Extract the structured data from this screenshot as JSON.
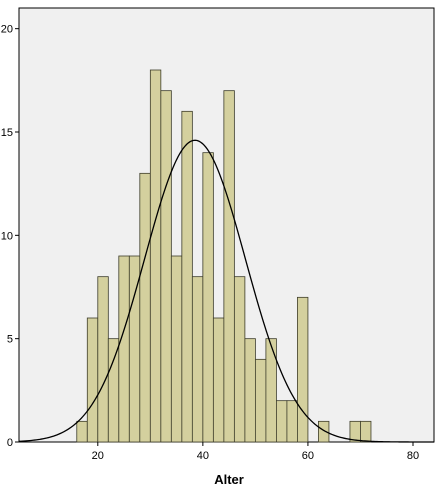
{
  "chart_data": {
    "type": "bar",
    "subtype": "histogram",
    "title": "",
    "xlabel": "Alter",
    "ylabel": "",
    "xlim": [
      5,
      84
    ],
    "ylim": [
      0,
      21
    ],
    "xticks": [
      20,
      40,
      60,
      80
    ],
    "yticks": [
      0,
      5,
      10,
      15,
      20
    ],
    "bin_width": 2,
    "bins": [
      {
        "x": 17,
        "value": 1
      },
      {
        "x": 19,
        "value": 6
      },
      {
        "x": 21,
        "value": 8
      },
      {
        "x": 23,
        "value": 5
      },
      {
        "x": 25,
        "value": 9
      },
      {
        "x": 27,
        "value": 9
      },
      {
        "x": 29,
        "value": 13
      },
      {
        "x": 31,
        "value": 18
      },
      {
        "x": 33,
        "value": 17
      },
      {
        "x": 35,
        "value": 9
      },
      {
        "x": 37,
        "value": 16
      },
      {
        "x": 39,
        "value": 8
      },
      {
        "x": 41,
        "value": 14
      },
      {
        "x": 43,
        "value": 6
      },
      {
        "x": 45,
        "value": 17
      },
      {
        "x": 47,
        "value": 8
      },
      {
        "x": 49,
        "value": 5
      },
      {
        "x": 51,
        "value": 4
      },
      {
        "x": 53,
        "value": 5
      },
      {
        "x": 55,
        "value": 2
      },
      {
        "x": 57,
        "value": 2
      },
      {
        "x": 59,
        "value": 7
      },
      {
        "x": 63,
        "value": 1
      },
      {
        "x": 69,
        "value": 1
      },
      {
        "x": 71,
        "value": 1
      }
    ],
    "normal_curve": {
      "mean": 38.5,
      "sd": 9.6,
      "peak": 14.6
    },
    "grid": false,
    "legend": "none",
    "colors": {
      "bar_fill": "#d4d09e",
      "bar_stroke": "#3d3d2a",
      "plot_background": "#f0f0f0",
      "curve": "#000000",
      "axis": "#000000"
    }
  }
}
